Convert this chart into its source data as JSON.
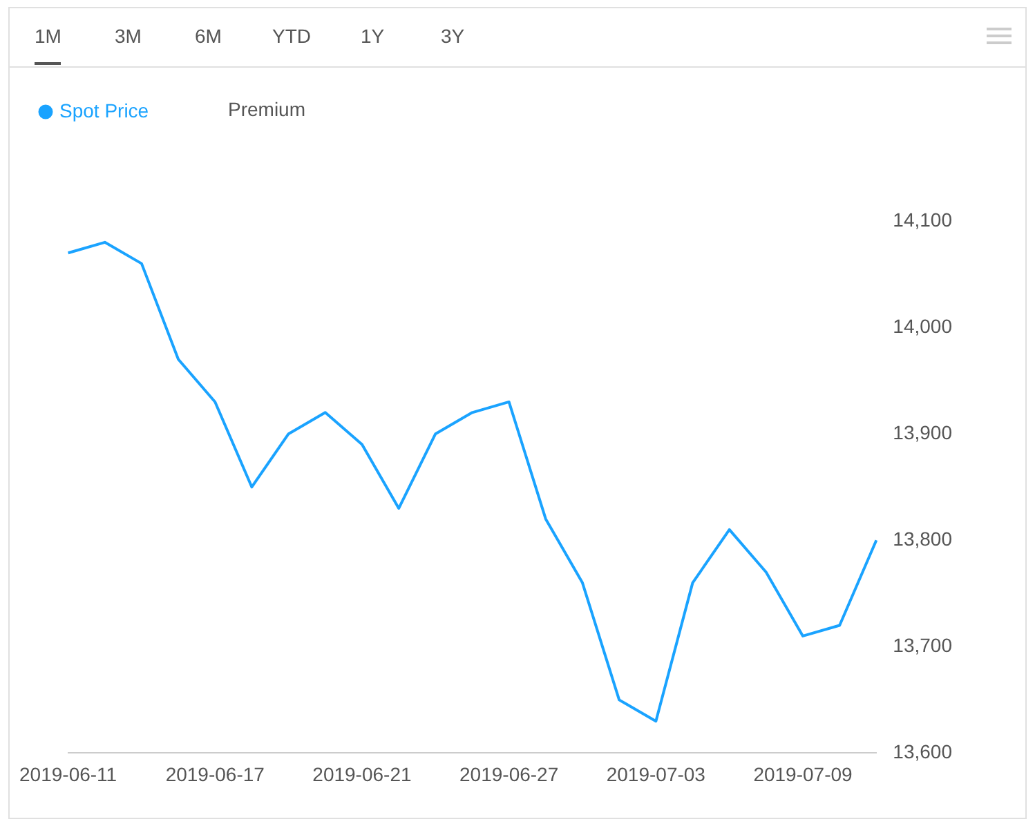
{
  "chart_data": {
    "type": "line",
    "categories": [
      "2019-06-11",
      null,
      null,
      null,
      "2019-06-17",
      null,
      null,
      null,
      "2019-06-21",
      null,
      null,
      null,
      "2019-06-27",
      null,
      null,
      null,
      "2019-07-03",
      null,
      null,
      null,
      "2019-07-09",
      null,
      null
    ],
    "series": [
      {
        "name": "Spot Price",
        "color": "#1aa3ff",
        "values": [
          14070,
          14080,
          14060,
          13970,
          13930,
          13850,
          13900,
          13920,
          13890,
          13830,
          13900,
          13920,
          13930,
          13820,
          13760,
          13650,
          13630,
          13760,
          13810,
          13770,
          13710,
          13720,
          13800
        ]
      }
    ],
    "ylim": [
      13600,
      14100
    ],
    "yticks": [
      {
        "value": 13600,
        "label": "13,600"
      },
      {
        "value": 13700,
        "label": "13,700"
      },
      {
        "value": 13800,
        "label": "13,800"
      },
      {
        "value": 13900,
        "label": "13,900"
      },
      {
        "value": 14000,
        "label": "14,000"
      },
      {
        "value": 14100,
        "label": "14,100"
      }
    ],
    "grid": false,
    "legend": "top left",
    "marker": "none",
    "line_style": "solid",
    "annotations": [
      "1M",
      "3M",
      "6M",
      "YTD",
      "1Y",
      "3Y",
      "Premium"
    ]
  }
}
